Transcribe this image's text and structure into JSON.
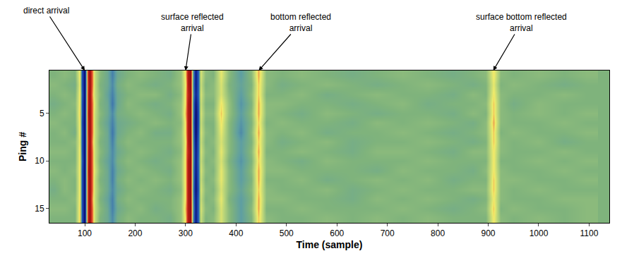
{
  "chart_data": {
    "type": "heatmap",
    "x_label": "Time (sample)",
    "y_label": "Ping #",
    "xlim": [
      30,
      1140
    ],
    "xticks": [
      100,
      200,
      300,
      400,
      500,
      600,
      700,
      800,
      900,
      1000,
      1100
    ],
    "ylim": [
      16.5,
      0.5
    ],
    "yticks": [
      5,
      10,
      15
    ],
    "zlim": [
      -1,
      1
    ],
    "x": [
      40,
      60,
      80,
      90,
      95,
      100,
      105,
      110,
      115,
      120,
      130,
      145,
      155,
      165,
      185,
      210,
      240,
      270,
      290,
      300,
      305,
      310,
      315,
      320,
      325,
      330,
      340,
      355,
      370,
      385,
      410,
      430,
      445,
      460,
      490,
      530,
      580,
      630,
      680,
      730,
      780,
      830,
      870,
      895,
      910,
      925,
      950,
      1000,
      1050,
      1095
    ],
    "y": [
      1,
      2,
      3,
      4,
      5,
      6,
      7,
      8,
      9,
      10,
      11,
      12,
      13,
      14,
      15,
      16
    ],
    "z": [
      [
        0,
        0.05,
        0,
        0.45,
        -0.6,
        -1,
        0.75,
        1,
        0.6,
        0.3,
        0.05,
        -0.1,
        -0.35,
        -0.1,
        0,
        0.05,
        0,
        -0.05,
        0.1,
        0.5,
        0.9,
        1,
        -0.4,
        -0.9,
        -0.5,
        0.35,
        0.05,
        0,
        0.4,
        0.05,
        -0.2,
        0.05,
        0.55,
        0.05,
        0,
        0.05,
        0,
        -0.05,
        0,
        0.05,
        0,
        -0.05,
        0,
        0.05,
        0.45,
        0.05,
        0,
        0.05,
        0,
        0.05
      ],
      [
        0.05,
        0,
        -0.05,
        0.4,
        -0.6,
        -1,
        0.7,
        1,
        0.6,
        0.3,
        0,
        -0.1,
        -0.3,
        -0.05,
        0.05,
        0,
        -0.05,
        0,
        0.1,
        0.45,
        0.9,
        1,
        -0.45,
        -0.9,
        -0.5,
        0.3,
        0,
        0.05,
        0.35,
        0,
        -0.15,
        0,
        0.5,
        0.05,
        -0.05,
        0,
        0.05,
        0,
        -0.05,
        0,
        0.05,
        0,
        -0.05,
        0,
        0.4,
        0,
        0.05,
        0,
        -0.05,
        0
      ],
      [
        0,
        0.05,
        0,
        0.45,
        -0.55,
        -1,
        0.75,
        1,
        0.55,
        0.3,
        0.05,
        -0.15,
        -0.35,
        -0.1,
        0,
        0.05,
        0.05,
        -0.05,
        0.05,
        0.5,
        0.85,
        1,
        -0.4,
        -0.85,
        -0.5,
        0.35,
        0.05,
        0.05,
        0.35,
        0.05,
        -0.2,
        0.05,
        0.5,
        0,
        0,
        0.05,
        -0.05,
        0,
        0.05,
        0,
        0,
        -0.05,
        0.05,
        0,
        0.45,
        0.05,
        0,
        0,
        0.05,
        0
      ],
      [
        -0.05,
        0,
        0.05,
        0.45,
        -0.6,
        -1,
        0.75,
        1,
        0.6,
        0.35,
        0,
        -0.1,
        -0.4,
        -0.1,
        0.05,
        0,
        -0.05,
        0,
        0.1,
        0.5,
        0.9,
        1,
        -0.5,
        -0.95,
        -0.55,
        0.3,
        0,
        0,
        0.45,
        0.1,
        -0.25,
        0,
        0.55,
        0.05,
        0.05,
        0,
        0,
        -0.05,
        0,
        0.05,
        -0.05,
        0,
        0,
        0.05,
        0.5,
        0.05,
        -0.05,
        0.05,
        0,
        0
      ],
      [
        0,
        0.05,
        0,
        0.5,
        -0.6,
        -1,
        0.8,
        1,
        0.6,
        0.3,
        0.05,
        -0.1,
        -0.3,
        -0.05,
        0,
        0.05,
        0,
        -0.05,
        0.1,
        0.55,
        0.9,
        1,
        -0.5,
        -1,
        -0.6,
        0.35,
        0.05,
        0.05,
        0.5,
        0.1,
        -0.2,
        0.05,
        0.55,
        0.05,
        0,
        -0.05,
        0.05,
        0,
        -0.05,
        0,
        0,
        -0.05,
        0.05,
        0,
        0.5,
        0.05,
        0,
        0.05,
        0,
        0.05
      ],
      [
        0.05,
        0,
        0,
        0.45,
        -0.65,
        -1,
        0.75,
        1,
        0.6,
        0.3,
        0,
        -0.15,
        -0.35,
        -0.1,
        -0.05,
        0,
        0.05,
        0,
        0.05,
        0.5,
        0.9,
        1,
        -0.55,
        -1,
        -0.6,
        0.3,
        0,
        0,
        0.45,
        0.05,
        -0.25,
        0,
        0.5,
        0,
        0.05,
        0,
        0,
        -0.05,
        0.05,
        0,
        0.05,
        0,
        -0.05,
        0.05,
        0.55,
        0.05,
        0,
        0,
        0.05,
        0
      ],
      [
        0,
        0.05,
        -0.05,
        0.45,
        -0.6,
        -1,
        0.75,
        1,
        0.6,
        0.3,
        0.05,
        -0.1,
        -0.4,
        -0.1,
        0,
        0.05,
        -0.05,
        -0.05,
        0.1,
        0.5,
        0.9,
        1,
        -0.5,
        -1,
        -0.55,
        0.35,
        0.05,
        0,
        0.4,
        0.05,
        -0.3,
        0.05,
        0.55,
        0.05,
        0,
        0.05,
        -0.05,
        0,
        0,
        0.05,
        0,
        -0.05,
        0,
        0.05,
        0.5,
        0,
        0.05,
        0,
        0,
        0.05
      ],
      [
        0,
        0,
        0.05,
        0.4,
        -0.6,
        -1,
        0.7,
        1,
        0.55,
        0.3,
        0,
        -0.1,
        -0.35,
        -0.05,
        0.05,
        0,
        0,
        0,
        0.1,
        0.45,
        0.9,
        1,
        -0.45,
        -0.95,
        -0.5,
        0.3,
        0,
        0.05,
        0.35,
        0.05,
        -0.2,
        0,
        0.5,
        0.05,
        -0.05,
        0,
        0.05,
        -0.05,
        0,
        0,
        0.05,
        0,
        -0.05,
        0,
        0.5,
        0.05,
        0,
        0.05,
        -0.05,
        0
      ],
      [
        0.05,
        0.05,
        0,
        0.45,
        -0.6,
        -1,
        0.75,
        1,
        0.6,
        0.3,
        0.05,
        -0.1,
        -0.3,
        -0.1,
        0,
        0.05,
        0,
        -0.05,
        0.05,
        0.5,
        0.85,
        1,
        -0.4,
        -0.9,
        -0.5,
        0.35,
        0.05,
        0,
        0.4,
        0.05,
        -0.2,
        0.05,
        0.55,
        0,
        0,
        0.05,
        0,
        -0.05,
        0.05,
        0.05,
        0,
        -0.05,
        0.05,
        0.05,
        0.45,
        0.05,
        0,
        0,
        0.05,
        0
      ],
      [
        0,
        0,
        0,
        0.45,
        -0.55,
        -1,
        0.75,
        1,
        0.6,
        0.3,
        0,
        -0.15,
        -0.3,
        -0.05,
        0.05,
        0,
        -0.05,
        0,
        0.1,
        0.5,
        0.9,
        1,
        -0.4,
        -0.9,
        -0.45,
        0.3,
        0,
        0.05,
        0.35,
        0,
        -0.25,
        0,
        0.5,
        0.05,
        0,
        -0.05,
        0.05,
        0,
        0,
        0,
        0.05,
        0,
        0,
        0,
        0.45,
        0,
        0,
        0.05,
        0,
        0.05
      ],
      [
        0.05,
        0,
        0.05,
        0.45,
        -0.6,
        -1,
        0.8,
        1,
        0.6,
        0.35,
        0.05,
        -0.1,
        -0.35,
        -0.1,
        0,
        0.05,
        0,
        -0.05,
        0.1,
        0.5,
        0.9,
        1,
        -0.45,
        -0.9,
        -0.5,
        0.35,
        0.05,
        0,
        0.4,
        0.05,
        -0.2,
        0.05,
        0.55,
        0.05,
        0.05,
        0,
        0,
        0,
        -0.05,
        0.05,
        0,
        0,
        -0.05,
        0.05,
        0.45,
        0.05,
        0,
        0,
        0.05,
        0
      ],
      [
        0,
        0.05,
        0,
        0.45,
        -0.6,
        -1,
        0.75,
        1,
        0.6,
        0.3,
        0,
        -0.1,
        -0.35,
        -0.05,
        0.05,
        0,
        0.05,
        0,
        0.1,
        0.5,
        0.9,
        1,
        -0.45,
        -0.95,
        -0.5,
        0.3,
        0,
        0.05,
        0.4,
        0.05,
        -0.2,
        0,
        0.55,
        0,
        0,
        0.05,
        -0.05,
        0,
        0.05,
        0,
        0.05,
        -0.05,
        0,
        0,
        0.5,
        0.05,
        0.05,
        0,
        0,
        0.05
      ],
      [
        -0.05,
        0.05,
        0,
        0.45,
        -0.6,
        -1,
        0.75,
        1,
        0.6,
        0.3,
        0.05,
        -0.1,
        -0.3,
        -0.1,
        0,
        0.05,
        0,
        -0.05,
        0.05,
        0.5,
        0.9,
        1,
        -0.5,
        -0.95,
        -0.55,
        0.35,
        0.05,
        0,
        0.35,
        0.05,
        -0.15,
        0.05,
        0.5,
        0.05,
        0,
        0,
        0.05,
        -0.05,
        0,
        0.05,
        0,
        0,
        0.05,
        0.05,
        0.5,
        0.05,
        0,
        0.05,
        0,
        0
      ],
      [
        0,
        0,
        0.05,
        0.45,
        -0.6,
        -1,
        0.75,
        1,
        0.55,
        0.3,
        0,
        -0.15,
        -0.35,
        -0.05,
        0.05,
        0,
        0,
        0,
        0.1,
        0.5,
        0.9,
        1,
        -0.45,
        -0.9,
        -0.5,
        0.3,
        0,
        0.05,
        0.4,
        0,
        -0.2,
        0,
        0.55,
        0.05,
        0.05,
        0,
        0,
        -0.05,
        0.05,
        0,
        0.05,
        0,
        -0.05,
        0,
        0.45,
        0.05,
        0,
        0,
        0.05,
        0.05
      ],
      [
        0.05,
        0.05,
        0,
        0.5,
        -0.6,
        -1,
        0.75,
        1,
        0.6,
        0.3,
        0.05,
        -0.1,
        -0.35,
        -0.1,
        0,
        0.05,
        -0.05,
        0,
        0.1,
        0.55,
        0.9,
        1,
        -0.4,
        -0.9,
        -0.5,
        0.35,
        0.05,
        0,
        0.35,
        0.05,
        -0.2,
        0.05,
        0.55,
        0,
        0,
        0.05,
        0,
        0,
        0,
        0.05,
        0,
        -0.05,
        0,
        0.05,
        0.5,
        0,
        0.05,
        0,
        0,
        0.05
      ],
      [
        0,
        0,
        0,
        0.5,
        -0.6,
        -1,
        0.75,
        1,
        0.6,
        0.3,
        0,
        -0.1,
        -0.3,
        -0.05,
        0.05,
        0,
        0,
        -0.05,
        0.1,
        0.5,
        0.9,
        1,
        -0.45,
        -0.9,
        -0.5,
        0.3,
        0,
        0.05,
        0.35,
        0.05,
        -0.2,
        0,
        0.5,
        0.05,
        0,
        0,
        0.05,
        0,
        0.05,
        0,
        0.05,
        0,
        0,
        0,
        0.45,
        0.05,
        0,
        0.05,
        0,
        0.05
      ]
    ],
    "annotations": [
      {
        "text": "direct arrival",
        "x": 100
      },
      {
        "text": "surface reflected\narrival",
        "x": 300
      },
      {
        "text": "bottom reflected\narrival",
        "x": 445
      },
      {
        "text": "surface bottom reflected\narrival",
        "x": 910
      }
    ]
  }
}
